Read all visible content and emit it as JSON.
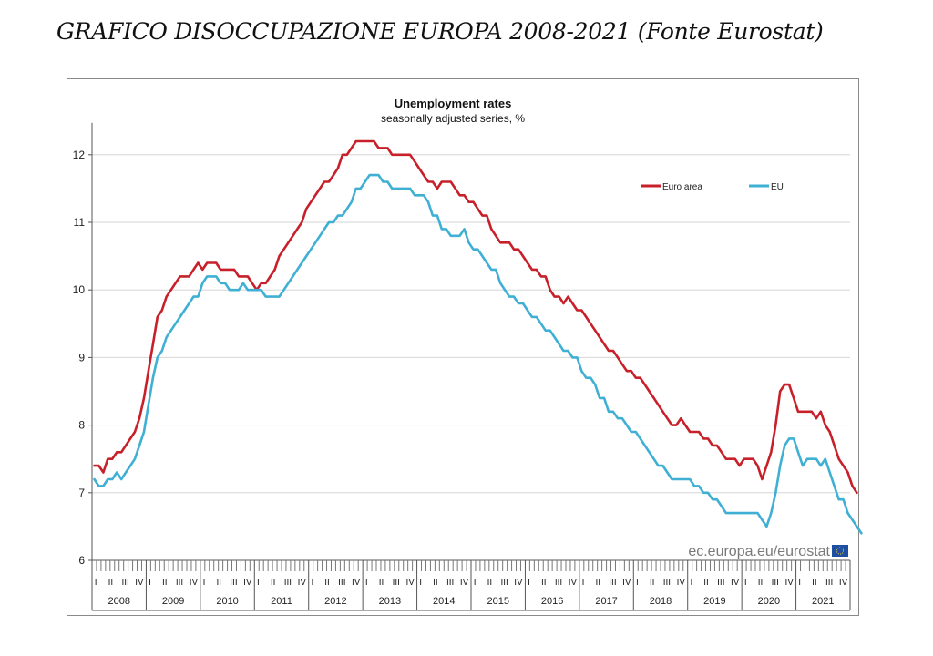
{
  "page": {
    "heading": "GRAFICO DISOCCUPAZIONE EUROPA 2008-2021 (Fonte Eurostat)"
  },
  "chart_data": {
    "type": "line",
    "title": "Unemployment rates",
    "subtitle": "seasonally adjusted series, %",
    "source": "ec.europa.eu/eurostat",
    "x_unit": "monthly",
    "x_range": [
      "2008-01",
      "2021-09"
    ],
    "ylim": [
      6,
      12.5
    ],
    "yticks": [
      6,
      7,
      8,
      9,
      10,
      11,
      12
    ],
    "grid": true,
    "legend_position": "top-right",
    "years": [
      "2008",
      "2009",
      "2010",
      "2011",
      "2012",
      "2013",
      "2014",
      "2015",
      "2016",
      "2017",
      "2018",
      "2019",
      "2020",
      "2021"
    ],
    "quarters": [
      "I",
      "II",
      "III",
      "IV"
    ],
    "series": [
      {
        "name": "Euro area",
        "color": "#c8202a",
        "values": [
          7.4,
          7.4,
          7.3,
          7.5,
          7.5,
          7.6,
          7.6,
          7.7,
          7.8,
          7.9,
          8.1,
          8.4,
          8.8,
          9.2,
          9.6,
          9.7,
          9.9,
          10.0,
          10.1,
          10.2,
          10.2,
          10.2,
          10.3,
          10.4,
          10.3,
          10.4,
          10.4,
          10.4,
          10.3,
          10.3,
          10.3,
          10.3,
          10.2,
          10.2,
          10.2,
          10.1,
          10.0,
          10.1,
          10.1,
          10.2,
          10.3,
          10.5,
          10.6,
          10.7,
          10.8,
          10.9,
          11.0,
          11.2,
          11.3,
          11.4,
          11.5,
          11.6,
          11.6,
          11.7,
          11.8,
          12.0,
          12.0,
          12.1,
          12.2,
          12.2,
          12.2,
          12.2,
          12.2,
          12.1,
          12.1,
          12.1,
          12.0,
          12.0,
          12.0,
          12.0,
          12.0,
          11.9,
          11.8,
          11.7,
          11.6,
          11.6,
          11.5,
          11.6,
          11.6,
          11.6,
          11.5,
          11.4,
          11.4,
          11.3,
          11.3,
          11.2,
          11.1,
          11.1,
          10.9,
          10.8,
          10.7,
          10.7,
          10.7,
          10.6,
          10.6,
          10.5,
          10.4,
          10.3,
          10.3,
          10.2,
          10.2,
          10.0,
          9.9,
          9.9,
          9.8,
          9.9,
          9.8,
          9.7,
          9.7,
          9.6,
          9.5,
          9.4,
          9.3,
          9.2,
          9.1,
          9.1,
          9.0,
          8.9,
          8.8,
          8.8,
          8.7,
          8.7,
          8.6,
          8.5,
          8.4,
          8.3,
          8.2,
          8.1,
          8.0,
          8.0,
          8.1,
          8.0,
          7.9,
          7.9,
          7.9,
          7.8,
          7.8,
          7.7,
          7.7,
          7.6,
          7.5,
          7.5,
          7.5,
          7.4,
          7.5,
          7.5,
          7.5,
          7.4,
          7.2,
          7.4,
          7.6,
          8.0,
          8.5,
          8.6,
          8.6,
          8.4,
          8.2,
          8.2,
          8.2,
          8.2,
          8.1,
          8.2,
          8.0,
          7.9,
          7.7,
          7.5,
          7.4,
          7.3,
          7.1,
          7.0
        ]
      },
      {
        "name": "EU",
        "color": "#3fb0d4",
        "values": [
          7.2,
          7.1,
          7.1,
          7.2,
          7.2,
          7.3,
          7.2,
          7.3,
          7.4,
          7.5,
          7.7,
          7.9,
          8.3,
          8.7,
          9.0,
          9.1,
          9.3,
          9.4,
          9.5,
          9.6,
          9.7,
          9.8,
          9.9,
          9.9,
          10.1,
          10.2,
          10.2,
          10.2,
          10.1,
          10.1,
          10.0,
          10.0,
          10.0,
          10.1,
          10.0,
          10.0,
          10.0,
          10.0,
          9.9,
          9.9,
          9.9,
          9.9,
          10.0,
          10.1,
          10.2,
          10.3,
          10.4,
          10.5,
          10.6,
          10.7,
          10.8,
          10.9,
          11.0,
          11.0,
          11.1,
          11.1,
          11.2,
          11.3,
          11.5,
          11.5,
          11.6,
          11.7,
          11.7,
          11.7,
          11.6,
          11.6,
          11.5,
          11.5,
          11.5,
          11.5,
          11.5,
          11.4,
          11.4,
          11.4,
          11.3,
          11.1,
          11.1,
          10.9,
          10.9,
          10.8,
          10.8,
          10.8,
          10.9,
          10.7,
          10.6,
          10.6,
          10.5,
          10.4,
          10.3,
          10.3,
          10.1,
          10.0,
          9.9,
          9.9,
          9.8,
          9.8,
          9.7,
          9.6,
          9.6,
          9.5,
          9.4,
          9.4,
          9.3,
          9.2,
          9.1,
          9.1,
          9.0,
          9.0,
          8.8,
          8.7,
          8.7,
          8.6,
          8.4,
          8.4,
          8.2,
          8.2,
          8.1,
          8.1,
          8.0,
          7.9,
          7.9,
          7.8,
          7.7,
          7.6,
          7.5,
          7.4,
          7.4,
          7.3,
          7.2,
          7.2,
          7.2,
          7.2,
          7.2,
          7.1,
          7.1,
          7.0,
          7.0,
          6.9,
          6.9,
          6.8,
          6.7,
          6.7,
          6.7,
          6.7,
          6.7,
          6.7,
          6.7,
          6.7,
          6.6,
          6.5,
          6.7,
          7.0,
          7.4,
          7.7,
          7.8,
          7.8,
          7.6,
          7.4,
          7.5,
          7.5,
          7.5,
          7.4,
          7.5,
          7.3,
          7.1,
          6.9,
          6.9,
          6.7,
          6.6,
          6.5,
          6.4
        ]
      }
    ]
  }
}
